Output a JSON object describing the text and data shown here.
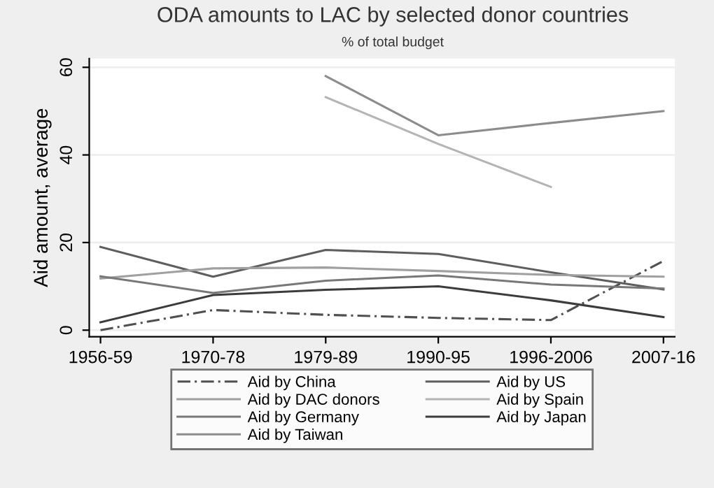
{
  "chart_data": {
    "type": "line",
    "title": "ODA amounts to LAC by selected donor countries",
    "subtitle": "% of total budget",
    "ylabel": "Aid amount, average",
    "categories": [
      "1956-59",
      "1970-78",
      "1979-89",
      "1990-95",
      "1996-2006",
      "2007-16"
    ],
    "ylim": [
      -1.5,
      62
    ],
    "yticks": [
      0,
      20,
      40,
      60
    ],
    "grid": "y",
    "legend": "bottom",
    "marker": "none",
    "series": [
      {
        "name": "Aid by China",
        "color": "#505050",
        "line_style": "dashed",
        "values": [
          0,
          4.6,
          3.5,
          2.8,
          2.3,
          15.8
        ]
      },
      {
        "name": "Aid by US",
        "color": "#5e5e5e",
        "values": [
          19,
          12.2,
          18.3,
          17.4,
          13.2,
          9.3
        ]
      },
      {
        "name": "Aid by DAC donors",
        "color": "#a0a0a0",
        "values": [
          11.8,
          14.1,
          14.3,
          13.5,
          12.6,
          12.2
        ]
      },
      {
        "name": "Aid by Spain",
        "color": "#b4b4b4",
        "values": [
          null,
          null,
          53.2,
          42.5,
          32.7,
          null
        ]
      },
      {
        "name": "Aid by Germany",
        "color": "#787878",
        "values": [
          12.3,
          8.5,
          11.3,
          12.5,
          10.4,
          9.5
        ]
      },
      {
        "name": "Aid by Japan",
        "color": "#3c3c3c",
        "values": [
          1.8,
          8.0,
          9.2,
          10.0,
          6.8,
          3.0
        ]
      },
      {
        "name": "Aid by Taiwan",
        "color": "#8c8c8c",
        "values": [
          null,
          null,
          58,
          44.5,
          47.3,
          50
        ]
      }
    ]
  }
}
